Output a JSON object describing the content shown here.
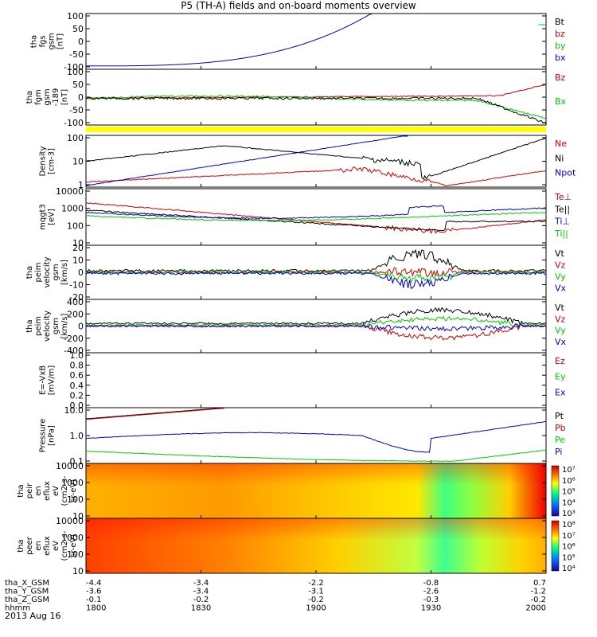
{
  "title": "P5 (TH-A) fields and on-board moments overview",
  "date_label": "2013 Aug 16",
  "colors": {
    "black": "#000000",
    "red": "#cc0000",
    "green": "#00cc00",
    "blue": "#0000cc",
    "yellow": "#ffff00"
  },
  "ephemeris": {
    "rows": [
      {
        "label": "tha_X_GSM",
        "values": [
          "-4.4",
          "-3.4",
          "-2.2",
          "-0.8",
          "0.7"
        ]
      },
      {
        "label": "tha_Y_GSM",
        "values": [
          "-3.6",
          "-3.4",
          "-3.1",
          "-2.6",
          "-1.2"
        ]
      },
      {
        "label": "tha_Z_GSM",
        "values": [
          "-0.1",
          "-0.2",
          "-0.2",
          "-0.3",
          "-0.2"
        ]
      },
      {
        "label": "hhmm",
        "values": [
          "1800",
          "1830",
          "1900",
          "1930",
          "2000"
        ]
      }
    ]
  },
  "chart_data": [
    {
      "type": "line",
      "ylabel": [
        "tha",
        "fgs",
        "gsm",
        "[nT]"
      ],
      "yticks": [
        "100",
        "50",
        "0",
        "-50",
        "-100"
      ],
      "ylim": [
        -100,
        100
      ],
      "legend": [
        {
          "name": "Bt",
          "color": "black"
        },
        {
          "name": "bz",
          "color": "red"
        },
        {
          "name": "by",
          "color": "green"
        },
        {
          "name": "bx",
          "color": "blue"
        }
      ]
    },
    {
      "type": "line",
      "ylabel": [
        "tha",
        "fgm",
        "gsm",
        "-189",
        "[nT]"
      ],
      "yticks": [
        "100",
        "50",
        "0",
        "-50",
        "-100"
      ],
      "ylim": [
        -120,
        100
      ],
      "legend": [
        {
          "name": "Bz",
          "color": "red"
        },
        {
          "name": "Bx",
          "color": "green"
        }
      ]
    },
    {
      "type": "line",
      "ylabel": [
        "Density",
        "[cm-3]"
      ],
      "yticks": [
        "100",
        "10",
        "1"
      ],
      "scale": "log",
      "legend": [
        {
          "name": "Ne",
          "color": "red"
        },
        {
          "name": "Ni",
          "color": "black"
        },
        {
          "name": "Npot",
          "color": "blue"
        }
      ]
    },
    {
      "type": "line",
      "ylabel": [
        "mqgt3",
        "[eV]"
      ],
      "yticks": [
        "10000",
        "1000",
        "100",
        "10"
      ],
      "scale": "log",
      "legend": [
        {
          "name": "Te⊥",
          "color": "red"
        },
        {
          "name": "Te||",
          "color": "black"
        },
        {
          "name": "Ti⊥",
          "color": "blue"
        },
        {
          "name": "Ti||",
          "color": "green"
        }
      ]
    },
    {
      "type": "line",
      "ylabel": [
        "tha",
        "peim",
        "velocity",
        "gsm",
        "[km/s]"
      ],
      "yticks": [
        "20",
        "10",
        "0",
        "-10",
        "-20"
      ],
      "ylim": [
        -20,
        20
      ],
      "legend": [
        {
          "name": "Vt",
          "color": "black"
        },
        {
          "name": "Vz",
          "color": "red"
        },
        {
          "name": "Vy",
          "color": "green"
        },
        {
          "name": "Vx",
          "color": "blue"
        }
      ]
    },
    {
      "type": "line",
      "ylabel": [
        "tha",
        "peim",
        "velocity",
        "gsm",
        "[km/s]"
      ],
      "yticks": [
        "400",
        "200",
        "0",
        "-200",
        "-400"
      ],
      "ylim": [
        -400,
        400
      ],
      "legend": [
        {
          "name": "Vt",
          "color": "black"
        },
        {
          "name": "Vz",
          "color": "red"
        },
        {
          "name": "Vy",
          "color": "green"
        },
        {
          "name": "Vx",
          "color": "blue"
        }
      ]
    },
    {
      "type": "line",
      "ylabel": [
        "E=-VxB",
        "[mV/m]"
      ],
      "yticks": [
        "1.0",
        "0.8",
        "0.6",
        "0.4",
        "0.2",
        "0.0"
      ],
      "ylim": [
        0,
        1
      ],
      "legend": [
        {
          "name": "Ez",
          "color": "red"
        },
        {
          "name": "Ey",
          "color": "green"
        },
        {
          "name": "Ex",
          "color": "blue"
        }
      ]
    },
    {
      "type": "line",
      "ylabel": [
        "Pressure",
        "[nPa]"
      ],
      "yticks": [
        "10.0",
        "1.0",
        "0.1"
      ],
      "scale": "log",
      "legend": [
        {
          "name": "Pt",
          "color": "black"
        },
        {
          "name": "Pb",
          "color": "red"
        },
        {
          "name": "Pe",
          "color": "green"
        },
        {
          "name": "Pi",
          "color": "blue"
        }
      ]
    },
    {
      "type": "heatmap",
      "ylabel": [
        "tha",
        "peir",
        "en",
        "eflux",
        "eV",
        "(cm2-s-",
        "sr-eV)"
      ],
      "yticks": [
        "10000",
        "1000",
        "100",
        "10"
      ],
      "colorbar": [
        "10⁷",
        "10⁶",
        "10⁵",
        "10⁴",
        "10³"
      ]
    },
    {
      "type": "heatmap",
      "ylabel": [
        "tha",
        "peer",
        "en",
        "eflux",
        "eV",
        "(cm2-s-",
        "sr-eV)"
      ],
      "yticks": [
        "10000",
        "1000",
        "100",
        "10"
      ],
      "colorbar": [
        "10⁸",
        "10⁷",
        "10⁶",
        "10⁵",
        "10⁴"
      ]
    }
  ]
}
